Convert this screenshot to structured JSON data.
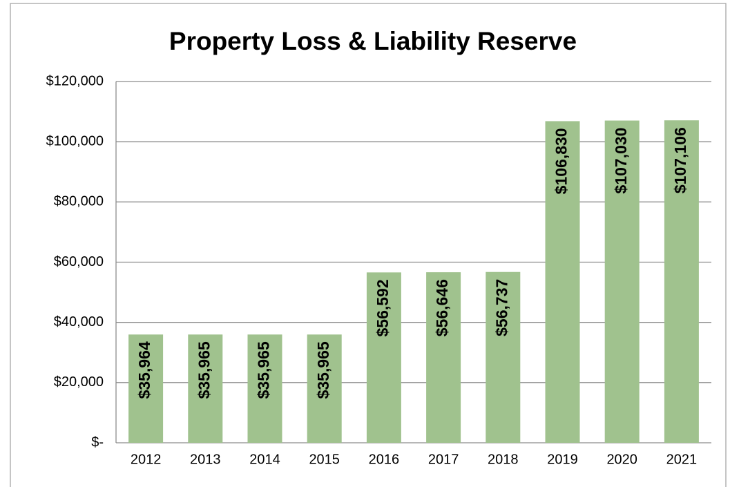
{
  "chart_data": {
    "type": "bar",
    "title": "Property Loss & Liability Reserve",
    "categories": [
      "2012",
      "2013",
      "2014",
      "2015",
      "2016",
      "2017",
      "2018",
      "2019",
      "2020",
      "2021"
    ],
    "values": [
      35964,
      35965,
      35965,
      35965,
      56592,
      56646,
      56737,
      106830,
      107030,
      107106
    ],
    "value_labels": [
      "$35,964",
      "$35,965",
      "$35,965",
      "$35,965",
      "$56,592",
      "$56,646",
      "$56,737",
      "$106,830",
      "$107,030",
      "$107,106"
    ],
    "color": "#a0c28e",
    "ylim": [
      0,
      120000
    ],
    "yticks": [
      {
        "value": 0,
        "label": "$-"
      },
      {
        "value": 20000,
        "label": "$20,000"
      },
      {
        "value": 40000,
        "label": "$40,000"
      },
      {
        "value": 60000,
        "label": "$60,000"
      },
      {
        "value": 80000,
        "label": "$80,000"
      },
      {
        "value": 100000,
        "label": "$100,000"
      },
      {
        "value": 120000,
        "label": "$120,000"
      }
    ],
    "grid": true
  }
}
